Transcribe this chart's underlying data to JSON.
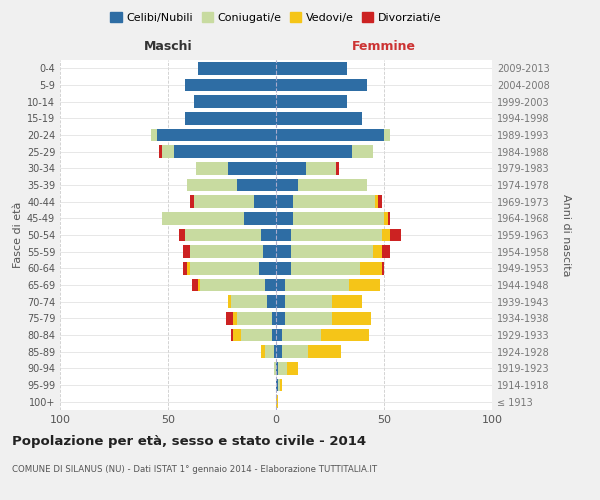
{
  "age_groups": [
    "100+",
    "95-99",
    "90-94",
    "85-89",
    "80-84",
    "75-79",
    "70-74",
    "65-69",
    "60-64",
    "55-59",
    "50-54",
    "45-49",
    "40-44",
    "35-39",
    "30-34",
    "25-29",
    "20-24",
    "15-19",
    "10-14",
    "5-9",
    "0-4"
  ],
  "birth_years": [
    "≤ 1913",
    "1914-1918",
    "1919-1923",
    "1924-1928",
    "1929-1933",
    "1934-1938",
    "1939-1943",
    "1944-1948",
    "1949-1953",
    "1954-1958",
    "1959-1963",
    "1964-1968",
    "1969-1973",
    "1974-1978",
    "1979-1983",
    "1984-1988",
    "1989-1993",
    "1994-1998",
    "1999-2003",
    "2004-2008",
    "2009-2013"
  ],
  "male": {
    "celibe": [
      0,
      0,
      0,
      1,
      2,
      2,
      4,
      5,
      8,
      6,
      7,
      15,
      10,
      18,
      22,
      47,
      55,
      42,
      38,
      42,
      36
    ],
    "coniugato": [
      0,
      0,
      1,
      4,
      14,
      16,
      17,
      30,
      32,
      34,
      35,
      38,
      28,
      23,
      15,
      6,
      3,
      0,
      0,
      0,
      0
    ],
    "vedovo": [
      0,
      0,
      0,
      2,
      4,
      2,
      1,
      1,
      1,
      0,
      0,
      0,
      0,
      0,
      0,
      0,
      0,
      0,
      0,
      0,
      0
    ],
    "divorziato": [
      0,
      0,
      0,
      0,
      1,
      3,
      0,
      3,
      2,
      3,
      3,
      0,
      2,
      0,
      0,
      1,
      0,
      0,
      0,
      0,
      0
    ]
  },
  "female": {
    "nubile": [
      0,
      1,
      1,
      3,
      3,
      4,
      4,
      4,
      7,
      7,
      7,
      8,
      8,
      10,
      14,
      35,
      50,
      40,
      33,
      42,
      33
    ],
    "coniugata": [
      0,
      1,
      4,
      12,
      18,
      22,
      22,
      30,
      32,
      38,
      42,
      42,
      38,
      32,
      14,
      10,
      3,
      0,
      0,
      0,
      0
    ],
    "vedova": [
      1,
      1,
      5,
      15,
      22,
      18,
      14,
      14,
      10,
      4,
      4,
      2,
      1,
      0,
      0,
      0,
      0,
      0,
      0,
      0,
      0
    ],
    "divorziata": [
      0,
      0,
      0,
      0,
      0,
      0,
      0,
      0,
      1,
      4,
      5,
      1,
      2,
      0,
      1,
      0,
      0,
      0,
      0,
      0,
      0
    ]
  },
  "colors": {
    "celibe": "#2e6da4",
    "coniugato": "#c8dba0",
    "vedovo": "#f5c518",
    "divorziato": "#cc2222"
  },
  "xlim": 100,
  "title": "Popolazione per età, sesso e stato civile - 2014",
  "subtitle": "COMUNE DI SILANUS (NU) - Dati ISTAT 1° gennaio 2014 - Elaborazione TUTTITALIA.IT",
  "xlabel_left": "Maschi",
  "xlabel_right": "Femmine",
  "ylabel_left": "Fasce di età",
  "ylabel_right": "Anni di nascita",
  "legend_labels": [
    "Celibi/Nubili",
    "Coniugati/e",
    "Vedovi/e",
    "Divorziati/e"
  ],
  "bg_color": "#f0f0f0",
  "plot_bg_color": "#ffffff"
}
